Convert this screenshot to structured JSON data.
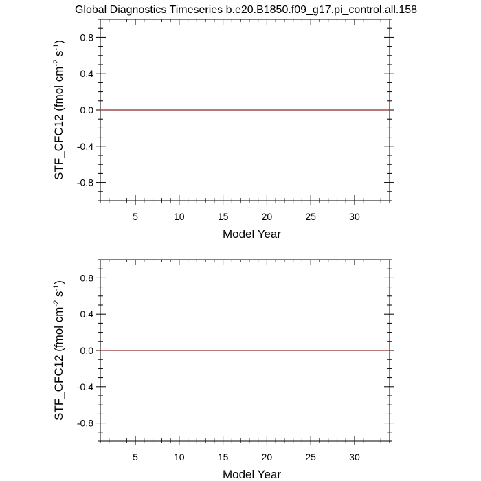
{
  "title": "Global Diagnostics Timeseries b.e20.B1850.f09_g17.pi_control.all.158",
  "colors": {
    "background": "#ffffff",
    "axis": "#000000",
    "series": "#8b2b2b"
  },
  "chart_data": [
    {
      "type": "line",
      "title": "Global Diagnostics Timeseries b.e20.B1850.f09_g17.pi_control.all.158",
      "xlabel": "Model Year",
      "ylabel_parts": [
        "STF_CFC12 (fmol cm",
        "-2",
        " s",
        "-1",
        ")"
      ],
      "xlim": [
        1,
        34
      ],
      "ylim": [
        -1.0,
        1.0
      ],
      "xticks": [
        5,
        10,
        15,
        20,
        25,
        30
      ],
      "xtick_labels": [
        "5",
        "10",
        "15",
        "20",
        "25",
        "30"
      ],
      "yticks": [
        0.8,
        0.4,
        0.0,
        -0.4,
        -0.8
      ],
      "ytick_labels": [
        "0.8",
        "0.4",
        "0.0",
        "-0.4",
        "-0.8"
      ],
      "grid": false,
      "series": [
        {
          "x": [
            1,
            34
          ],
          "y": [
            0.0,
            0.0
          ]
        }
      ]
    },
    {
      "type": "line",
      "xlabel": "Model Year",
      "ylabel_parts": [
        "STF_CFC12 (fmol cm",
        "-2",
        " s",
        "-1",
        ")"
      ],
      "xlim": [
        1,
        34
      ],
      "ylim": [
        -1.0,
        1.0
      ],
      "xticks": [
        5,
        10,
        15,
        20,
        25,
        30
      ],
      "xtick_labels": [
        "5",
        "10",
        "15",
        "20",
        "25",
        "30"
      ],
      "yticks": [
        0.8,
        0.4,
        0.0,
        -0.4,
        -0.8
      ],
      "ytick_labels": [
        "0.8",
        "0.4",
        "0.0",
        "-0.4",
        "-0.8"
      ],
      "grid": false,
      "series": [
        {
          "x": [
            1,
            34
          ],
          "y": [
            0.0,
            0.0
          ]
        }
      ]
    }
  ]
}
